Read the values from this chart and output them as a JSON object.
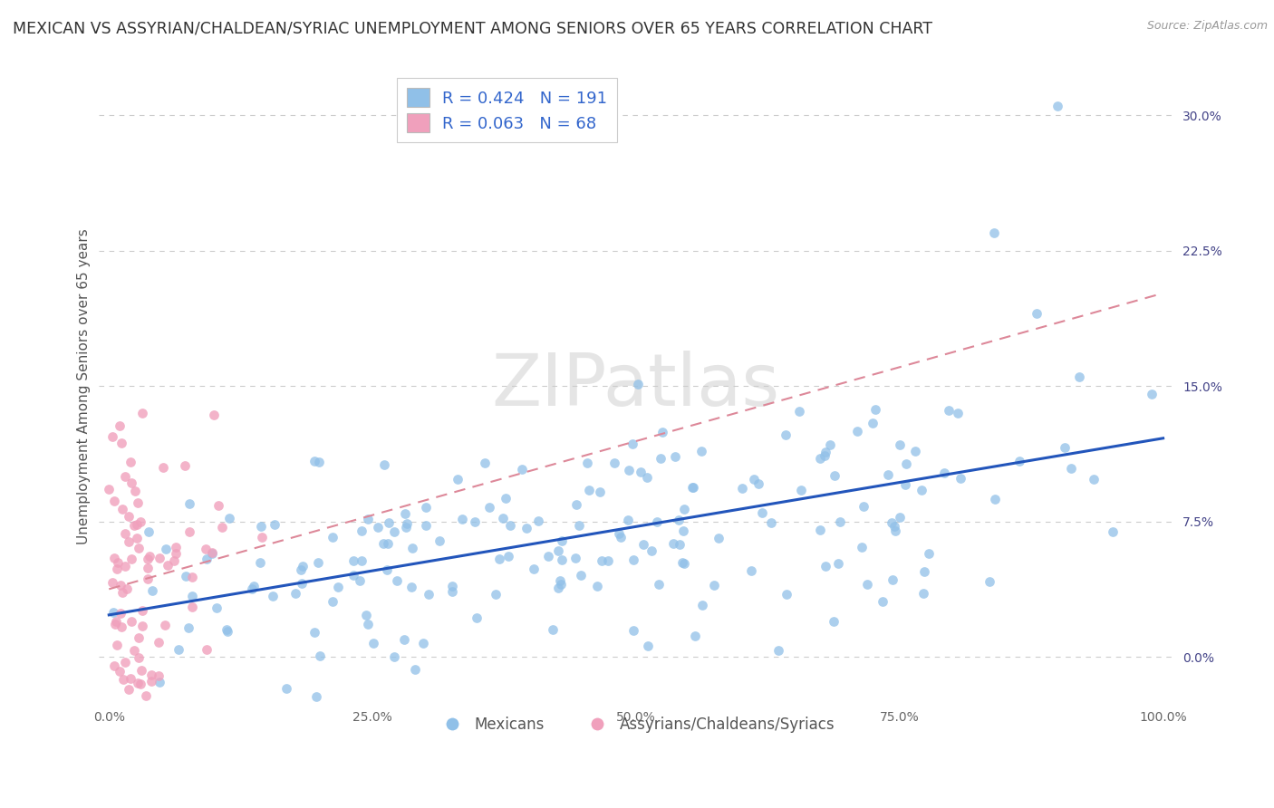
{
  "title": "MEXICAN VS ASSYRIAN/CHALDEAN/SYRIAC UNEMPLOYMENT AMONG SENIORS OVER 65 YEARS CORRELATION CHART",
  "source": "Source: ZipAtlas.com",
  "ylabel": "Unemployment Among Seniors over 65 years",
  "watermark": "ZIPatlas",
  "blue_R": 0.424,
  "blue_N": 191,
  "pink_R": 0.063,
  "pink_N": 68,
  "blue_color": "#90C0E8",
  "pink_color": "#F0A0BC",
  "blue_line_color": "#2255BB",
  "pink_line_color": "#DD8899",
  "legend1_label": "Mexicans",
  "legend2_label": "Assyrians/Chaldeans/Syriacs",
  "xlim": [
    -0.01,
    1.01
  ],
  "ylim": [
    -0.025,
    0.325
  ],
  "xticks": [
    0.0,
    0.25,
    0.5,
    0.75,
    1.0
  ],
  "xtick_labels": [
    "0.0%",
    "25.0%",
    "50.0%",
    "75.0%",
    "100.0%"
  ],
  "yticks": [
    0.0,
    0.075,
    0.15,
    0.225,
    0.3
  ],
  "ytick_labels": [
    "0.0%",
    "7.5%",
    "15.0%",
    "22.5%",
    "30.0%"
  ],
  "background_color": "#FFFFFF",
  "grid_color": "#CCCCCC",
  "title_fontsize": 12.5,
  "axis_fontsize": 11,
  "tick_fontsize": 10,
  "seed": 7
}
